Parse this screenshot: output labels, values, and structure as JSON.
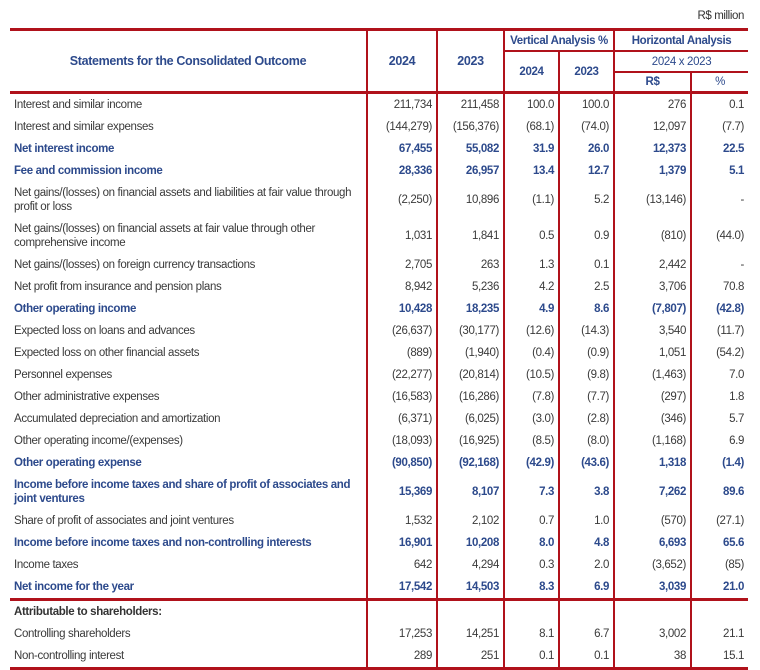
{
  "unit": "R$ million",
  "header": {
    "title": "Statements for the Consolidated Outcome",
    "year1": "2024",
    "year2": "2023",
    "vertical": "Vertical Analysis %",
    "vertical_y1": "2024",
    "vertical_y2": "2023",
    "horizontal": "Horizontal Analysis",
    "horizontal_period": "2024 x 2023",
    "horizontal_rs": "R$",
    "horizontal_pct": "%"
  },
  "colors": {
    "accent_red": "#b0121b",
    "heading_blue": "#2d4a8c"
  },
  "rows": [
    {
      "label": "Interest and similar income",
      "bold": false,
      "values": [
        "211,734",
        "211,458",
        "100.0",
        "100.0",
        "276",
        "0.1"
      ]
    },
    {
      "label": "Interest and similar expenses",
      "bold": false,
      "values": [
        "(144,279)",
        "(156,376)",
        "(68.1)",
        "(74.0)",
        "12,097",
        "(7.7)"
      ]
    },
    {
      "label": "Net interest income",
      "bold": true,
      "values": [
        "67,455",
        "55,082",
        "31.9",
        "26.0",
        "12,373",
        "22.5"
      ]
    },
    {
      "label": "Fee and commission income",
      "bold": true,
      "values": [
        "28,336",
        "26,957",
        "13.4",
        "12.7",
        "1,379",
        "5.1"
      ]
    },
    {
      "label": "Net gains/(losses) on financial assets and liabilities at fair value through profit or loss",
      "bold": false,
      "tall": true,
      "values": [
        "(2,250)",
        "10,896",
        "(1.1)",
        "5.2",
        "(13,146)",
        "-"
      ]
    },
    {
      "label": "Net gains/(losses) on financial assets at fair value through other comprehensive income",
      "bold": false,
      "tall": true,
      "values": [
        "1,031",
        "1,841",
        "0.5",
        "0.9",
        "(810)",
        "(44.0)"
      ]
    },
    {
      "label": "Net gains/(losses) on foreign currency transactions",
      "bold": false,
      "values": [
        "2,705",
        "263",
        "1.3",
        "0.1",
        "2,442",
        "-"
      ]
    },
    {
      "label": "Net profit from insurance and pension plans",
      "bold": false,
      "values": [
        "8,942",
        "5,236",
        "4.2",
        "2.5",
        "3,706",
        "70.8"
      ]
    },
    {
      "label": "Other operating income",
      "bold": true,
      "values": [
        "10,428",
        "18,235",
        "4.9",
        "8.6",
        "(7,807)",
        "(42.8)"
      ]
    },
    {
      "label": "Expected loss on loans and advances",
      "bold": false,
      "values": [
        "(26,637)",
        "(30,177)",
        "(12.6)",
        "(14.3)",
        "3,540",
        "(11.7)"
      ]
    },
    {
      "label": "Expected loss on other financial assets",
      "bold": false,
      "values": [
        "(889)",
        "(1,940)",
        "(0.4)",
        "(0.9)",
        "1,051",
        "(54.2)"
      ]
    },
    {
      "label": "Personnel expenses",
      "bold": false,
      "values": [
        "(22,277)",
        "(20,814)",
        "(10.5)",
        "(9.8)",
        "(1,463)",
        "7.0"
      ]
    },
    {
      "label": "Other administrative expenses",
      "bold": false,
      "values": [
        "(16,583)",
        "(16,286)",
        "(7.8)",
        "(7.7)",
        "(297)",
        "1.8"
      ]
    },
    {
      "label": "Accumulated depreciation and amortization",
      "bold": false,
      "values": [
        "(6,371)",
        "(6,025)",
        "(3.0)",
        "(2.8)",
        "(346)",
        "5.7"
      ]
    },
    {
      "label": "Other operating income/(expenses)",
      "bold": false,
      "values": [
        "(18,093)",
        "(16,925)",
        "(8.5)",
        "(8.0)",
        "(1,168)",
        "6.9"
      ]
    },
    {
      "label": "Other operating expense",
      "bold": true,
      "values": [
        "(90,850)",
        "(92,168)",
        "(42.9)",
        "(43.6)",
        "1,318",
        "(1.4)"
      ]
    },
    {
      "label": "Income before income taxes and share of profit of associates and joint ventures",
      "bold": true,
      "tall": true,
      "values": [
        "15,369",
        "8,107",
        "7.3",
        "3.8",
        "7,262",
        "89.6"
      ]
    },
    {
      "label": "Share of profit of associates and joint ventures",
      "bold": false,
      "values": [
        "1,532",
        "2,102",
        "0.7",
        "1.0",
        "(570)",
        "(27.1)"
      ]
    },
    {
      "label": "Income before income taxes and non-controlling interests",
      "bold": true,
      "values": [
        "16,901",
        "10,208",
        "8.0",
        "4.8",
        "6,693",
        "65.6"
      ]
    },
    {
      "label": "Income taxes",
      "bold": false,
      "values": [
        "642",
        "4,294",
        "0.3",
        "2.0",
        "(3,652)",
        "(85)"
      ]
    },
    {
      "label": "Net income for the year",
      "bold": true,
      "values": [
        "17,542",
        "14,503",
        "8.3",
        "6.9",
        "3,039",
        "21.0"
      ]
    },
    {
      "label": "Attributable to shareholders:",
      "bold": false,
      "attr": true,
      "sep": true,
      "values": [
        "",
        "",
        "",
        "",
        "",
        ""
      ]
    },
    {
      "label": "Controlling shareholders",
      "bold": false,
      "values": [
        "17,253",
        "14,251",
        "8.1",
        "6.7",
        "3,002",
        "21.1"
      ]
    },
    {
      "label": "Non-controlling interest",
      "bold": false,
      "last": true,
      "values": [
        "289",
        "251",
        "0.1",
        "0.1",
        "38",
        "15.1"
      ]
    }
  ]
}
